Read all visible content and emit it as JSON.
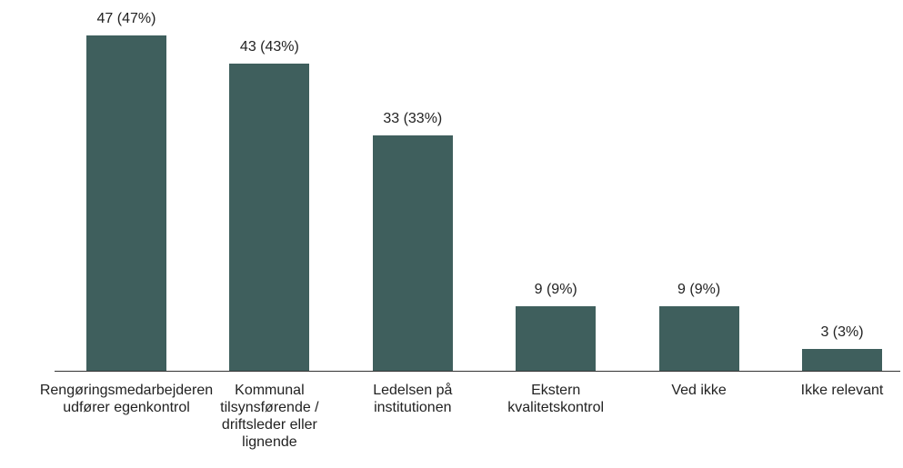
{
  "chart_data": {
    "type": "bar",
    "categories": [
      "Rengøringsmedarbejderen udfører egenkontrol",
      "Kommunal tilsynsførende / driftsleder eller lignende",
      "Ledelsen på institutionen",
      "Ekstern kvalitetskontrol",
      "Ved ikke",
      "Ikke relevant"
    ],
    "values": [
      47,
      43,
      33,
      9,
      9,
      3
    ],
    "value_labels": [
      "47 (47%)",
      "43 (43%)",
      "33 (33%)",
      "9 (9%)",
      "9 (9%)",
      "3 (3%)"
    ],
    "color": "#3f5f5d"
  }
}
